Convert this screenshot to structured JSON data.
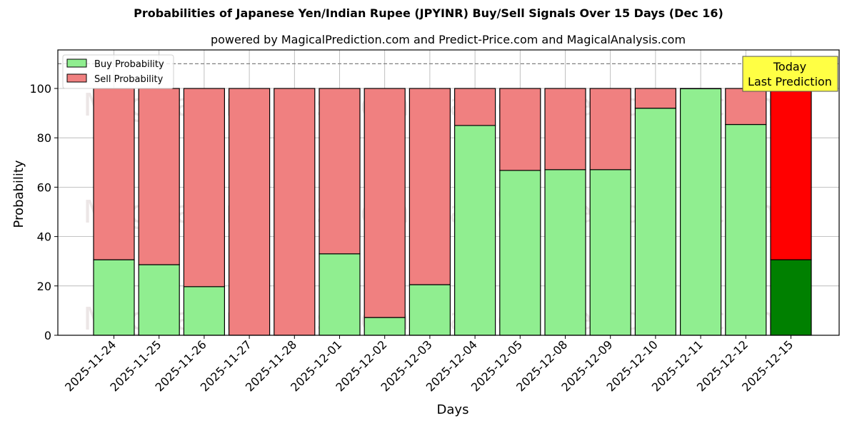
{
  "chart_data": {
    "type": "bar",
    "stacked": true,
    "title": "Probabilities of Japanese Yen/Indian Rupee (JPYINR) Buy/Sell Signals Over 15 Days (Dec 16)",
    "subtitle": "powered by MagicalPrediction.com and Predict-Price.com and MagicalAnalysis.com",
    "xlabel": "Days",
    "ylabel": "Probability",
    "ylim": [
      0,
      115
    ],
    "yticks": [
      0,
      20,
      40,
      60,
      80,
      100
    ],
    "grid": true,
    "legend_position": "upper left",
    "categories": [
      "2025-11-24",
      "2025-11-25",
      "2025-11-26",
      "2025-11-27",
      "2025-11-28",
      "2025-12-01",
      "2025-12-02",
      "2025-12-03",
      "2025-12-04",
      "2025-12-05",
      "2025-12-08",
      "2025-12-09",
      "2025-12-10",
      "2025-12-11",
      "2025-12-12",
      "2025-12-15"
    ],
    "series": [
      {
        "name": "Buy Probability",
        "color": "#90ee90",
        "values": [
          30.6,
          28.6,
          19.7,
          0.0,
          0.0,
          33.0,
          7.2,
          20.5,
          85.0,
          66.8,
          67.1,
          67.1,
          92.0,
          99.9,
          85.4,
          30.6
        ]
      },
      {
        "name": "Sell Probability",
        "color": "#f08080",
        "values": [
          69.4,
          71.4,
          80.3,
          100.0,
          100.0,
          67.0,
          92.8,
          79.5,
          15.0,
          33.2,
          32.9,
          32.9,
          8.0,
          0.1,
          14.6,
          69.4
        ]
      }
    ],
    "highlight": {
      "index": 15,
      "buy_color": "#008000",
      "sell_color": "#ff0000"
    },
    "reference_line": {
      "y": 110,
      "style": "dashed",
      "color": "#808080"
    },
    "annotation": {
      "line1": "Today",
      "line2": "Last Prediction",
      "background": "#ffff44"
    },
    "watermarks": [
      "MagicalAnalysis.com",
      "MagicalPrediction.com"
    ]
  },
  "legend": {
    "buy_label": "Buy Probability",
    "sell_label": "Sell Probability"
  }
}
